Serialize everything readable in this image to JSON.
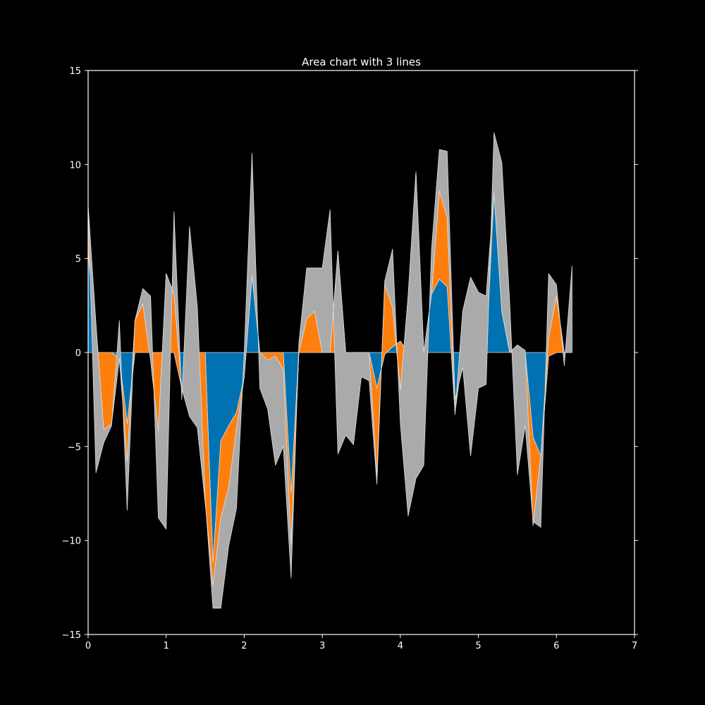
{
  "chart_data": {
    "type": "area",
    "stacked": true,
    "title": "Area chart with 3 lines",
    "xlabel": "",
    "ylabel": "",
    "xlim": [
      0,
      7
    ],
    "ylim": [
      -15,
      15
    ],
    "xticks": [
      0,
      1,
      2,
      3,
      4,
      5,
      6,
      7
    ],
    "yticks": [
      -15,
      -10,
      -5,
      0,
      5,
      10,
      15
    ],
    "grid": false,
    "legend": null,
    "background": "#000000",
    "foreground": "#ffffff",
    "edge_color": "#dddddd",
    "x": [
      0.0,
      0.1,
      0.2,
      0.3,
      0.4,
      0.5,
      0.6,
      0.7,
      0.8,
      0.9,
      1.0,
      1.1,
      1.2,
      1.3,
      1.4,
      1.5,
      1.6,
      1.7,
      1.8,
      1.9,
      2.0,
      2.1,
      2.2,
      2.3,
      2.4,
      2.5,
      2.6,
      2.7,
      2.8,
      2.9,
      3.0,
      3.1,
      3.2,
      3.3,
      3.4,
      3.5,
      3.6,
      3.7,
      3.8,
      3.9,
      4.0,
      4.1,
      4.2,
      4.3,
      4.4,
      4.5,
      4.6,
      4.7,
      4.8,
      4.9,
      5.0,
      5.1,
      5.2,
      5.3,
      5.4,
      5.5,
      5.6,
      5.7,
      5.8,
      5.9,
      6.0,
      6.1,
      6.2
    ],
    "series": [
      {
        "color": "#0072b2",
        "values": [
          5.5,
          0,
          0,
          0,
          -0.3,
          -3.8,
          0,
          0,
          0,
          0,
          0,
          0,
          -1.9,
          0,
          0,
          0,
          -11.2,
          -4.7,
          -3.9,
          -3.2,
          -1.3,
          4.1,
          0,
          0,
          0,
          0,
          -7.5,
          0,
          0,
          0,
          0,
          0,
          0,
          0,
          0,
          0,
          0,
          -1.9,
          -0.1,
          0.3,
          0.6,
          0,
          0,
          0,
          3.1,
          3.9,
          3.5,
          -3.2,
          0,
          0,
          0,
          0,
          8.5,
          2.2,
          0,
          0,
          0,
          -4.5,
          -5.5,
          -0.2,
          0,
          0,
          0
        ]
      },
      {
        "color": "#ff7f0e",
        "values": [
          2.3,
          1.5,
          -4.1,
          -3.8,
          0,
          -2.0,
          1.7,
          2.6,
          -0.4,
          -4.2,
          4.2,
          3.1,
          0,
          -3.4,
          -4.0,
          -8.0,
          -1.2,
          -4.1,
          -3.3,
          -0.9,
          0,
          0,
          0,
          -0.4,
          -0.2,
          -0.9,
          -2.7,
          0,
          1.8,
          2.2,
          0,
          0,
          5.4,
          0,
          0,
          0,
          0,
          -4.7,
          3.7,
          2.1,
          -2.6,
          3.0,
          9.6,
          0,
          0,
          4.7,
          3.7,
          -0.1,
          2.2,
          4.0,
          3.2,
          3.0,
          0,
          0,
          0,
          0.4,
          0.1,
          -4.7,
          0,
          1.0,
          3.0,
          0,
          0
        ]
      },
      {
        "color": "#aaaaaa",
        "values": [
          0,
          -7.9,
          -0.7,
          -0.1,
          2.0,
          -2.6,
          0,
          0.8,
          3.4,
          -4.6,
          -13.6,
          4.4,
          -0.6,
          10.1,
          6.4,
          0.2,
          -1.2,
          -4.8,
          -3.1,
          -4.2,
          1.3,
          6.5,
          -1.9,
          -2.6,
          -5.8,
          -4.1,
          -1.8,
          0.5,
          2.7,
          2.3,
          4.5,
          7.6,
          -10.8,
          -4.4,
          -4.9,
          -1.3,
          -1.5,
          -0.4,
          0.2,
          3.1,
          -1.8,
          -11.7,
          -16.3,
          -6.0,
          2.4,
          2.2,
          3.5,
          0.8,
          -3.0,
          -9.5,
          -5.1,
          -4.7,
          3.2,
          7.9,
          2.7,
          -6.9,
          -4.0,
          0.2,
          -3.8,
          3.4,
          0.6,
          -0.7,
          4.6
        ]
      }
    ]
  }
}
